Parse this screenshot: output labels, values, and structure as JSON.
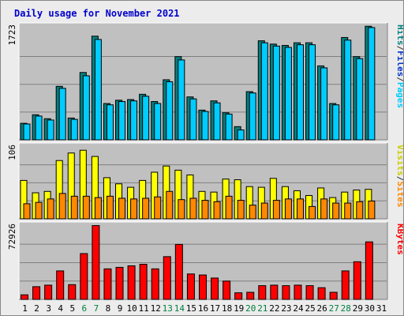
{
  "title": "Daily usage for November 2021",
  "colors": {
    "title": "#0000cc",
    "panel_bg": "#c0c0c0",
    "hits": "#008080",
    "files": "#00ccff",
    "pages": "#0033cc",
    "visits": "#ffff00",
    "sites": "#ff8800",
    "kbytes": "#ff0000",
    "weekend_label": "#008040"
  },
  "legends": {
    "top": [
      {
        "text": "Hits",
        "color": "#008080"
      },
      {
        "text": "/",
        "color": "#333333"
      },
      {
        "text": "Files",
        "color": "#0033cc"
      },
      {
        "text": "/",
        "color": "#333333"
      },
      {
        "text": "Pages",
        "color": "#00ccff"
      }
    ],
    "middle": [
      {
        "text": "Visits",
        "color": "#cccc00"
      },
      {
        "text": "/",
        "color": "#333333"
      },
      {
        "text": "Sites",
        "color": "#ff8800"
      }
    ],
    "bottom": [
      {
        "text": "KBytes",
        "color": "#ff0000"
      }
    ]
  },
  "chart_data": [
    {
      "type": "bar",
      "panel": "hits-files-pages",
      "ymax_label": "1723",
      "ylim": [
        0,
        1723
      ],
      "categories": [
        "1",
        "2",
        "3",
        "4",
        "5",
        "6",
        "7",
        "8",
        "9",
        "10",
        "11",
        "12",
        "13",
        "14",
        "15",
        "16",
        "17",
        "18",
        "19",
        "20",
        "21",
        "22",
        "23",
        "24",
        "25",
        "26",
        "27",
        "28",
        "29",
        "30",
        "31"
      ],
      "series": [
        {
          "name": "Hits",
          "values": [
            250,
            380,
            320,
            810,
            330,
            1020,
            1570,
            550,
            600,
            610,
            690,
            580,
            910,
            1260,
            650,
            450,
            590,
            410,
            200,
            730,
            1500,
            1450,
            1430,
            1470,
            1470,
            1120,
            550,
            1550,
            1260,
            1720,
            0
          ]
        },
        {
          "name": "Files",
          "values": [
            240,
            360,
            300,
            780,
            310,
            970,
            1520,
            530,
            580,
            590,
            660,
            550,
            880,
            1210,
            620,
            430,
            560,
            390,
            150,
            710,
            1470,
            1420,
            1400,
            1440,
            1440,
            1090,
            530,
            1510,
            1230,
            1700,
            0
          ]
        }
      ]
    },
    {
      "type": "bar",
      "panel": "visits-sites",
      "ymax_label": "106",
      "ylim": [
        0,
        106
      ],
      "categories": [
        "1",
        "2",
        "3",
        "4",
        "5",
        "6",
        "7",
        "8",
        "9",
        "10",
        "11",
        "12",
        "13",
        "14",
        "15",
        "16",
        "17",
        "18",
        "19",
        "20",
        "21",
        "22",
        "23",
        "24",
        "25",
        "26",
        "27",
        "28",
        "29",
        "30",
        "31"
      ],
      "series": [
        {
          "name": "Visits",
          "values": [
            56,
            38,
            40,
            85,
            96,
            100,
            91,
            60,
            51,
            46,
            56,
            68,
            77,
            71,
            64,
            40,
            39,
            58,
            57,
            47,
            46,
            59,
            47,
            41,
            34,
            45,
            31,
            39,
            42,
            43,
            0
          ]
        },
        {
          "name": "Sites",
          "values": [
            22,
            24,
            29,
            37,
            33,
            33,
            31,
            33,
            30,
            29,
            30,
            32,
            40,
            28,
            30,
            27,
            25,
            33,
            27,
            20,
            23,
            27,
            29,
            29,
            18,
            29,
            23,
            23,
            25,
            26,
            0
          ]
        }
      ]
    },
    {
      "type": "bar",
      "panel": "kbytes",
      "ymax_label": "72926",
      "ylim": [
        0,
        72926
      ],
      "categories": [
        "1",
        "2",
        "3",
        "4",
        "5",
        "6",
        "7",
        "8",
        "9",
        "10",
        "11",
        "12",
        "13",
        "14",
        "15",
        "16",
        "17",
        "18",
        "19",
        "20",
        "21",
        "22",
        "23",
        "24",
        "25",
        "26",
        "27",
        "28",
        "29",
        "30",
        "31"
      ],
      "series": [
        {
          "name": "KBytes",
          "values": [
            4500,
            12500,
            14000,
            28000,
            14500,
            45000,
            72500,
            30000,
            31500,
            33000,
            34500,
            30000,
            42000,
            54000,
            25000,
            24000,
            21000,
            18000,
            6500,
            7000,
            13500,
            14000,
            13500,
            14000,
            13500,
            11500,
            7000,
            28000,
            37000,
            56500,
            0
          ]
        }
      ]
    }
  ],
  "x_labels": [
    {
      "day": "1",
      "weekend": false
    },
    {
      "day": "2",
      "weekend": false
    },
    {
      "day": "3",
      "weekend": false
    },
    {
      "day": "4",
      "weekend": false
    },
    {
      "day": "5",
      "weekend": false
    },
    {
      "day": "6",
      "weekend": true
    },
    {
      "day": "7",
      "weekend": true
    },
    {
      "day": "8",
      "weekend": false
    },
    {
      "day": "9",
      "weekend": false
    },
    {
      "day": "10",
      "weekend": false
    },
    {
      "day": "11",
      "weekend": false
    },
    {
      "day": "12",
      "weekend": false
    },
    {
      "day": "13",
      "weekend": true
    },
    {
      "day": "14",
      "weekend": true
    },
    {
      "day": "15",
      "weekend": false
    },
    {
      "day": "16",
      "weekend": false
    },
    {
      "day": "17",
      "weekend": false
    },
    {
      "day": "18",
      "weekend": false
    },
    {
      "day": "19",
      "weekend": false
    },
    {
      "day": "20",
      "weekend": true
    },
    {
      "day": "21",
      "weekend": true
    },
    {
      "day": "22",
      "weekend": false
    },
    {
      "day": "23",
      "weekend": false
    },
    {
      "day": "24",
      "weekend": false
    },
    {
      "day": "25",
      "weekend": false
    },
    {
      "day": "26",
      "weekend": false
    },
    {
      "day": "27",
      "weekend": true
    },
    {
      "day": "28",
      "weekend": true
    },
    {
      "day": "29",
      "weekend": false
    },
    {
      "day": "30",
      "weekend": false
    },
    {
      "day": "31",
      "weekend": false
    }
  ]
}
